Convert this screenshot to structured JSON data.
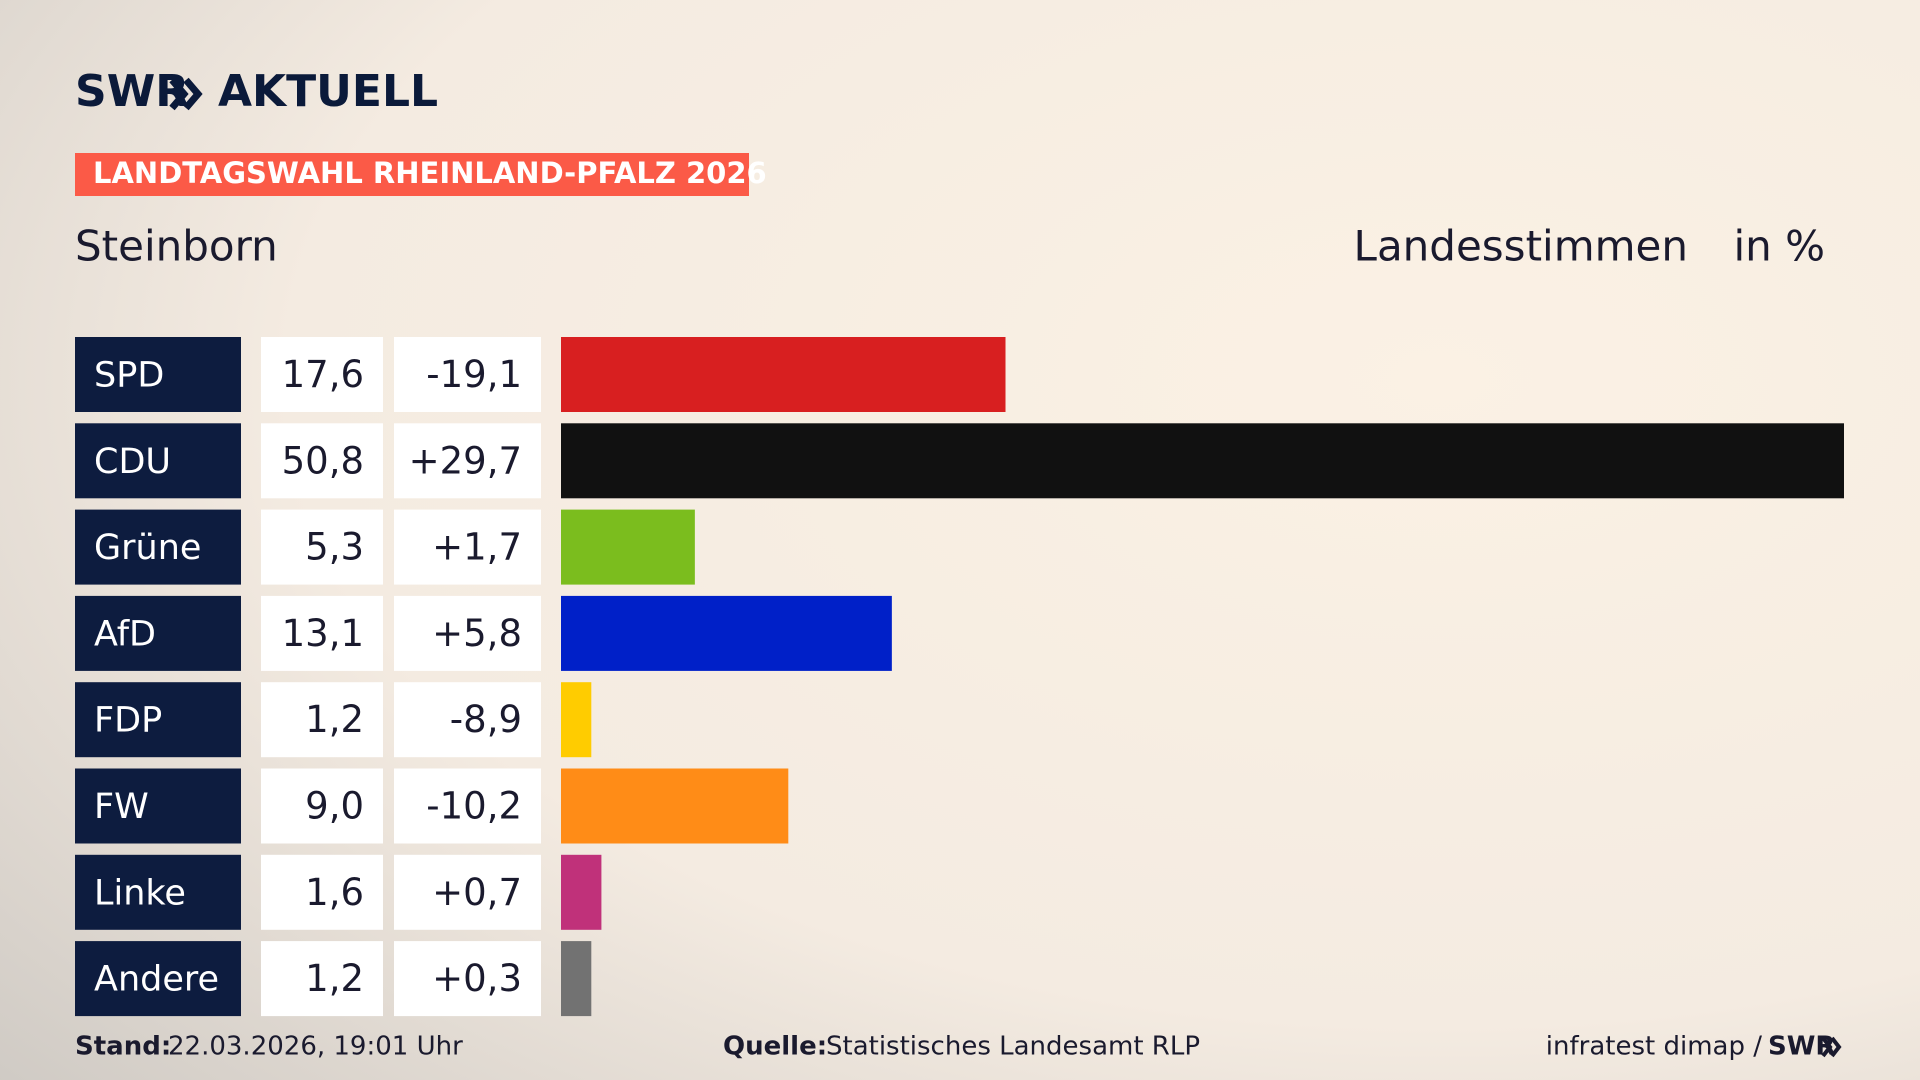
{
  "header": {
    "brand": "SWR",
    "brand_suffix": "AKTUELL",
    "banner": "LANDTAGSWAHL RHEINLAND-PFALZ 2026"
  },
  "chart_data": {
    "type": "bar",
    "title": "Steinborn",
    "subtitle": "Landesstimmen",
    "unit": "in %",
    "categories": [
      "SPD",
      "CDU",
      "Grüne",
      "AfD",
      "FDP",
      "FW",
      "Linke",
      "Andere"
    ],
    "values": [
      17.6,
      50.8,
      5.3,
      13.1,
      1.2,
      9.0,
      1.6,
      1.2
    ],
    "value_labels": [
      "17,6",
      "50,8",
      "5,3",
      "13,1",
      "1,2",
      "9,0",
      "1,6",
      "1,2"
    ],
    "changes": [
      -19.1,
      29.7,
      1.7,
      5.8,
      -8.9,
      -10.2,
      0.7,
      0.3
    ],
    "change_labels": [
      "-19,1",
      "+29,7",
      "+1,7",
      "+5,8",
      "-8,9",
      "-10,2",
      "+0,7",
      "+0,3"
    ],
    "colors": [
      "#d81f20",
      "#111111",
      "#7bbd1e",
      "#0020c8",
      "#ffcc00",
      "#ff8c17",
      "#c0317a",
      "#727272"
    ]
  },
  "footer": {
    "stand_label": "Stand:",
    "stand": "22.03.2026, 19:01 Uhr",
    "source_label": "Quelle:",
    "source": "Statistisches Landesamt RLP",
    "credit": "infratest dimap /",
    "credit_brand": "SWR"
  }
}
